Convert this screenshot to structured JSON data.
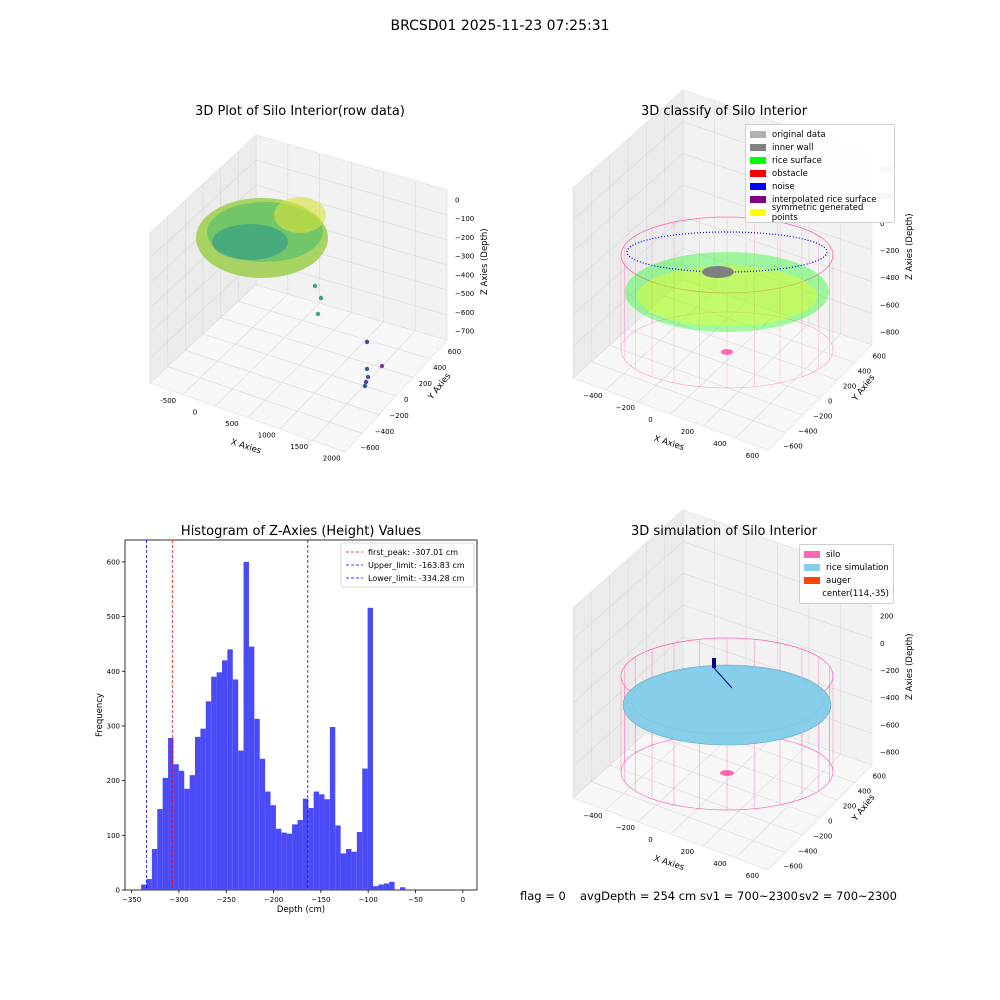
{
  "suptitle": "BRCSD01 2025-11-23 07:25:31",
  "panels": {
    "raw": {
      "title": "3D Plot of Silo Interior(row data)",
      "xlabel": "X Axies",
      "ylabel": "Y Axies",
      "zlabel": "Z Axies (Depth)",
      "xticks": [
        "-500",
        "0",
        "500",
        "1000",
        "1500",
        "2000"
      ],
      "yticks": [
        "600",
        "400",
        "200",
        "0",
        "−200",
        "−400",
        "−600"
      ],
      "zticks": [
        "0",
        "−100",
        "−200",
        "−300",
        "−400",
        "−500",
        "−600",
        "−700"
      ]
    },
    "classify": {
      "title": "3D classify of Silo Interior",
      "xlabel": "X Axies",
      "ylabel": "Y Axies",
      "zlabel": "Z Axies (Depth)",
      "xticks": [
        "−400",
        "−200",
        "0",
        "200",
        "400",
        "600"
      ],
      "yticks": [
        "600",
        "400",
        "200",
        "0",
        "−200",
        "−400",
        "−600"
      ],
      "zticks": [
        "400",
        "200",
        "0",
        "−200",
        "−400",
        "−600",
        "−800"
      ],
      "legend": [
        {
          "label": "original data",
          "color": "#b0b0b0"
        },
        {
          "label": "inner wall",
          "color": "#808080"
        },
        {
          "label": "rice surface",
          "color": "#00ff00"
        },
        {
          "label": "obstacle",
          "color": "#ff0000"
        },
        {
          "label": "noise",
          "color": "#0000ff"
        },
        {
          "label": "interpolated rice surface",
          "color": "#800080"
        },
        {
          "label": "symmetric generated points",
          "color": "#ffff00"
        }
      ]
    },
    "simulation": {
      "title": "3D simulation of Silo Interior",
      "xlabel": "X Axies",
      "ylabel": "Y Axies",
      "zlabel": "Z Axies (Depth)",
      "xticks": [
        "−400",
        "−200",
        "0",
        "200",
        "400",
        "600"
      ],
      "yticks": [
        "600",
        "400",
        "200",
        "0",
        "−200",
        "−400",
        "−600"
      ],
      "zticks": [
        "400",
        "200",
        "0",
        "−200",
        "−400",
        "−600",
        "−800"
      ],
      "legend": [
        {
          "label": "silo",
          "color": "#ff69b4"
        },
        {
          "label": "rice simulation",
          "color": "#87ceeb"
        },
        {
          "label": "auger",
          "color": "#ff4500"
        },
        {
          "label": "center(114,-35)",
          "color": "none"
        }
      ]
    }
  },
  "footer": {
    "flag": "flag = 0",
    "avg": "avgDepth = 254 cm",
    "sv1": "sv1 = 700~2300",
    "sv2": "sv2 = 700~2300"
  },
  "colors": {
    "hist": "#4a4af7",
    "first_peak": "#ff0000",
    "limit": "#0000ff",
    "silo": "#ff69b4",
    "rice": "#87ceeb"
  },
  "chart_data": {
    "type": "bar",
    "title": "Histogram of Z-Axies (Height) Values",
    "xlabel": "Depth (cm)",
    "ylabel": "Frequency",
    "xlim": [
      -350,
      0
    ],
    "ylim": [
      0,
      600
    ],
    "xticks": [
      -350,
      -300,
      -250,
      -200,
      -150,
      -100,
      -50,
      0
    ],
    "yticks": [
      0,
      100,
      200,
      300,
      400,
      500,
      600
    ],
    "bin_start": -340,
    "bin_width": 5.7,
    "values": [
      10,
      20,
      75,
      148,
      205,
      278,
      230,
      218,
      185,
      210,
      280,
      295,
      345,
      390,
      398,
      420,
      440,
      385,
      255,
      600,
      445,
      313,
      240,
      180,
      155,
      112,
      105,
      103,
      120,
      128,
      167,
      150,
      180,
      175,
      166,
      298,
      118,
      67,
      75,
      70,
      106,
      222,
      516,
      7,
      10,
      12,
      15,
      0,
      5
    ],
    "vlines": [
      {
        "label": "first_peak: -307.01 cm",
        "x": -307.01,
        "style": "first_peak"
      },
      {
        "label": "Upper_limit: -163.83 cm",
        "x": -163.83,
        "style": "limit"
      },
      {
        "label": "Lower_limit: -334.28 cm",
        "x": -334.28,
        "style": "limit"
      }
    ],
    "grid": false,
    "legend_position": "top-right"
  }
}
